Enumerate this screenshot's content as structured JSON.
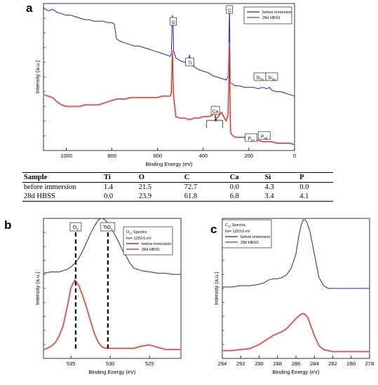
{
  "panels": {
    "a": "a",
    "b": "b",
    "c": "c"
  },
  "colors": {
    "before": "#1f1fb4",
    "after": "#a0341c",
    "after_glow": "#f4b6c2"
  },
  "chart_data": [
    {
      "id": "a",
      "type": "line",
      "title": "",
      "xlabel": "Binding Energy (eV)",
      "ylabel": "Intensity (a.u.)",
      "xlim": [
        1100,
        0
      ],
      "ylim": [
        0,
        100
      ],
      "x_reversed": true,
      "xticks": [
        1000,
        800,
        600,
        400,
        200,
        0
      ],
      "legend": {
        "position": "top-right",
        "entries": [
          "before immersion",
          "28d HBSS"
        ]
      },
      "series": [
        {
          "name": "before immersion",
          "x": [
            1100,
            1080,
            1060,
            1040,
            1020,
            1000,
            980,
            960,
            940,
            920,
            900,
            880,
            860,
            840,
            820,
            800,
            790,
            780,
            770,
            760,
            740,
            720,
            700,
            680,
            660,
            640,
            620,
            600,
            580,
            560,
            545,
            540,
            535,
            532,
            530,
            520,
            500,
            480,
            470,
            465,
            460,
            455,
            450,
            440,
            420,
            400,
            380,
            360,
            340,
            320,
            300,
            292,
            288,
            285,
            282,
            280,
            270,
            260,
            240,
            220,
            200,
            180,
            160,
            140,
            120,
            110,
            100,
            80,
            60,
            40,
            20,
            0
          ],
          "y": [
            97,
            95,
            96,
            94,
            93,
            92,
            92,
            91,
            90,
            89,
            89,
            88,
            88,
            88,
            87,
            87,
            86,
            76,
            75,
            74,
            73,
            72,
            71,
            71,
            70,
            69,
            68,
            67,
            66,
            65,
            64,
            66,
            92,
            85,
            68,
            63,
            61,
            60,
            59,
            61,
            65,
            61,
            58,
            57,
            55,
            54,
            53,
            51,
            50,
            49,
            48,
            50,
            68,
            96,
            60,
            46,
            45,
            44,
            44,
            43,
            43,
            43,
            42,
            43,
            42,
            43,
            41,
            40,
            40,
            39,
            38,
            37
          ]
        },
        {
          "name": "28d HBSS",
          "x": [
            1100,
            1080,
            1060,
            1040,
            1020,
            1000,
            980,
            960,
            940,
            920,
            900,
            880,
            860,
            840,
            820,
            800,
            780,
            760,
            740,
            720,
            700,
            680,
            660,
            640,
            620,
            600,
            580,
            560,
            545,
            540,
            535,
            533,
            531,
            528,
            520,
            500,
            480,
            460,
            440,
            420,
            400,
            380,
            360,
            350,
            345,
            340,
            330,
            320,
            300,
            292,
            288,
            285,
            282,
            280,
            270,
            260,
            240,
            220,
            200,
            180,
            160,
            140,
            120,
            100,
            80,
            60,
            40,
            20,
            0
          ],
          "y": [
            38,
            37,
            36,
            33,
            31,
            30,
            30,
            30,
            30,
            31,
            31,
            31,
            31,
            32,
            33,
            34,
            35,
            35,
            35,
            36,
            36,
            36,
            36,
            36,
            36,
            36,
            37,
            37,
            37,
            39,
            68,
            52,
            40,
            34,
            23,
            22,
            22,
            21,
            22,
            22,
            23,
            23,
            24,
            30,
            20,
            22,
            24,
            26,
            20,
            24,
            42,
            72,
            26,
            12,
            10,
            9,
            9,
            9,
            8,
            7,
            7,
            6,
            6,
            6,
            5,
            5,
            5,
            5,
            4
          ]
        }
      ],
      "annotations": [
        {
          "text": "O",
          "x": 531
        },
        {
          "text": "Ti",
          "x": 459
        },
        {
          "text": "C",
          "x": 285
        },
        {
          "text": "Ca",
          "x": 347
        },
        {
          "text": "Si",
          "sub": "2s",
          "x": 152
        },
        {
          "text": "Si",
          "sub": "2p",
          "x": 100
        },
        {
          "text": "P",
          "sub": "2s",
          "x": 190
        },
        {
          "text": "P",
          "sub": "2p",
          "x": 133
        }
      ]
    },
    {
      "id": "table",
      "type": "table",
      "columns": [
        "Sample",
        "Ti",
        "O",
        "C",
        "Ca",
        "Si",
        "P"
      ],
      "rows": [
        [
          "before immersion",
          "1.4",
          "21.5",
          "72.7",
          "0.0",
          "4.3",
          "0.0"
        ],
        [
          "28d HBSS",
          "0.0",
          "23.9",
          "61.8",
          "6.8",
          "3.4",
          "4.1"
        ]
      ]
    },
    {
      "id": "b",
      "type": "line",
      "title": "",
      "xlabel": "Binding Energy (eV)",
      "ylabel": "Intensity (a.u.)",
      "xlim": [
        538.5,
        521
      ],
      "ylim": [
        0,
        100
      ],
      "x_reversed": true,
      "xticks": [
        535,
        530,
        525
      ],
      "legend": {
        "position": "top-right",
        "title": "O",
        "title_sub": "1s",
        "title_rest": " Spectra",
        "subtitle": "hv= 1253.6 eV",
        "entries": [
          "before immersion",
          "28d HBSS"
        ]
      },
      "series": [
        {
          "name": "before immersion",
          "x": [
            538.5,
            537.5,
            536.5,
            536,
            535.5,
            535,
            534.5,
            534,
            533.5,
            533,
            532.5,
            532,
            531.5,
            531.2,
            531,
            530.7,
            530.4,
            530,
            529.5,
            529,
            528.5,
            528,
            527.5,
            527,
            526,
            525,
            524,
            523,
            522,
            521
          ],
          "y": [
            56,
            57,
            57,
            58,
            59,
            61,
            64,
            68,
            74,
            81,
            88,
            94,
            99,
            100,
            100,
            99,
            97,
            93,
            88,
            82,
            75,
            70,
            64,
            60,
            58,
            57,
            56,
            56,
            55,
            55
          ]
        },
        {
          "name": "28d HBSS",
          "x": [
            538.5,
            538,
            537.5,
            537,
            536.5,
            536,
            535.5,
            535,
            534.5,
            534,
            533.5,
            533,
            532.5,
            532,
            531.5,
            531,
            530.5,
            530,
            529,
            528,
            527,
            526,
            525,
            524,
            523,
            522,
            521
          ],
          "y": [
            3,
            4,
            6,
            9,
            15,
            24,
            40,
            58,
            65,
            60,
            51,
            40,
            28,
            17,
            9,
            5,
            4,
            4,
            4,
            4,
            4,
            6,
            7,
            5,
            3,
            3,
            3
          ]
        }
      ],
      "reference_lines": [
        {
          "label": "O",
          "label_sub": "2",
          "x": 534.4
        },
        {
          "label": "TiO",
          "label_sub": "2",
          "x": 530.3
        }
      ]
    },
    {
      "id": "c",
      "type": "line",
      "title": "",
      "xlabel": "Binding Energy (eV)",
      "ylabel": "Intensity (a.u.)",
      "xlim": [
        294,
        278
      ],
      "ylim": [
        0,
        100
      ],
      "x_reversed": true,
      "xticks": [
        294,
        292,
        290,
        288,
        286,
        284,
        282,
        280,
        278
      ],
      "legend": {
        "position": "top-right",
        "title": "C",
        "title_sub": "1s",
        "title_rest": " Spectra",
        "subtitle": "hv= 1253.6 eV",
        "entries": [
          "before immersion",
          "28d HBSS"
        ]
      },
      "series": [
        {
          "name": "before immersion",
          "x": [
            294,
            293,
            292,
            291,
            290,
            289.5,
            289,
            288.5,
            288,
            287.5,
            287,
            286.5,
            286,
            285.7,
            285.4,
            285.2,
            285,
            284.8,
            284.5,
            284,
            283.5,
            283,
            282.5,
            282,
            281,
            280,
            279,
            278
          ],
          "y": [
            51,
            51,
            52,
            52,
            53,
            54,
            56,
            57,
            57,
            58,
            60,
            65,
            75,
            88,
            97,
            100,
            100,
            98,
            92,
            75,
            58,
            52,
            50,
            50,
            50,
            50,
            50,
            50
          ]
        },
        {
          "name": "28d HBSS",
          "x": [
            294,
            293,
            292,
            291,
            290.5,
            290,
            289.5,
            289,
            288.5,
            288,
            287.5,
            287,
            286.5,
            286,
            285.5,
            285.2,
            285,
            284.7,
            284.4,
            284,
            283.5,
            283,
            282.5,
            282,
            281,
            280,
            279,
            278
          ],
          "y": [
            5,
            5,
            6,
            7,
            9,
            11,
            14,
            17,
            20,
            22,
            24,
            27,
            32,
            37,
            41,
            42,
            41,
            38,
            30,
            20,
            10,
            6,
            5,
            4,
            4,
            4,
            4,
            4
          ]
        }
      ]
    }
  ]
}
